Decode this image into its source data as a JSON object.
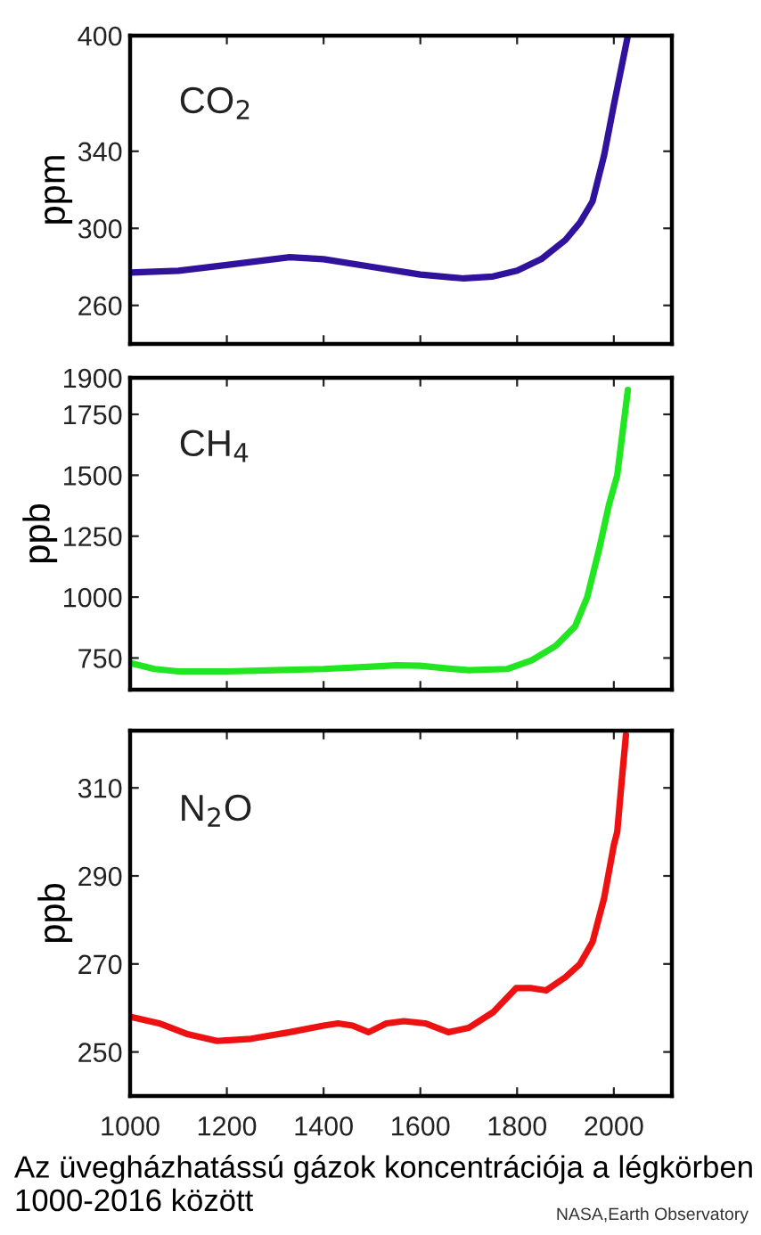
{
  "chart_data": [
    {
      "type": "line",
      "ylabel": "ppm",
      "annotations": [
        "CO$_{2}$"
      ],
      "xlim": [
        1000,
        2120
      ],
      "xticks": [
        1000,
        1200,
        1400,
        1600,
        1800,
        2000
      ],
      "ylim": [
        240,
        400
      ],
      "yticks": [
        260,
        300,
        340,
        400
      ],
      "tick_labels": "y",
      "grid": false,
      "series": [
        {
          "color": "#30129c",
          "x": [
            1000,
            1100,
            1200,
            1330,
            1400,
            1500,
            1600,
            1690,
            1750,
            1800,
            1850,
            1900,
            1930,
            1956,
            1980,
            2000,
            2029
          ],
          "values": [
            277,
            278,
            281,
            285,
            284,
            280,
            276,
            274,
            275,
            278,
            284,
            294,
            303,
            314,
            338,
            364,
            400
          ]
        }
      ]
    },
    {
      "type": "line",
      "ylabel": "ppb",
      "annotations": [
        "CH$_{4}$"
      ],
      "xlim": [
        1000,
        2120
      ],
      "xticks": [
        1000,
        1200,
        1400,
        1600,
        1800,
        2000
      ],
      "ylim": [
        620,
        1900
      ],
      "yticks": [
        750,
        1000,
        1250,
        1500,
        1750,
        1900
      ],
      "tick_labels": "y",
      "grid": false,
      "series": [
        {
          "color": "#22e622",
          "x": [
            1000,
            1050,
            1100,
            1200,
            1300,
            1400,
            1500,
            1550,
            1600,
            1650,
            1700,
            1780,
            1830,
            1880,
            1920,
            1945,
            1970,
            1990,
            2007,
            2029
          ],
          "values": [
            730,
            705,
            695,
            695,
            700,
            705,
            715,
            720,
            718,
            708,
            700,
            705,
            740,
            800,
            880,
            1000,
            1200,
            1380,
            1500,
            1850
          ]
        }
      ]
    },
    {
      "type": "line",
      "ylabel": "ppb",
      "annotations": [
        "N$_{2}$O",
        "Az üvegházhatássú gázok koncentrációja a légkörben 1000-2016 között",
        "NASA,Earth Observatory"
      ],
      "xlim": [
        1000,
        2120
      ],
      "xticks": [
        1000,
        1200,
        1400,
        1600,
        1800,
        2000
      ],
      "ylim": [
        240,
        323
      ],
      "yticks": [
        250,
        270,
        290,
        310
      ],
      "grid": false,
      "series": [
        {
          "color": "#ee1111",
          "x": [
            1000,
            1060,
            1120,
            1180,
            1250,
            1330,
            1400,
            1430,
            1460,
            1493,
            1530,
            1566,
            1610,
            1658,
            1700,
            1750,
            1798,
            1830,
            1860,
            1900,
            1930,
            1956,
            1980,
            2000,
            2007,
            2015,
            2025
          ],
          "values": [
            258,
            256.5,
            254,
            252.5,
            253,
            254.5,
            256,
            256.5,
            256,
            254.5,
            256.5,
            257,
            256.5,
            254.5,
            255.5,
            259,
            264.5,
            264.5,
            264,
            267,
            270,
            275,
            285,
            297,
            300,
            310,
            322
          ]
        }
      ]
    }
  ]
}
